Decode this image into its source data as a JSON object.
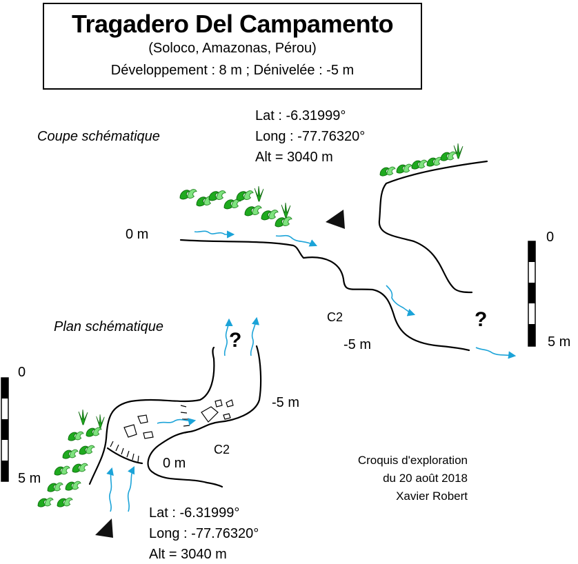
{
  "header": {
    "title": "Tragadero Del Campamento",
    "subtitle": "(Soloco, Amazonas, Pérou)",
    "stats": "Développement : 8 m ; Dénivelée : -5 m"
  },
  "section_view": {
    "heading": "Coupe schématique",
    "lat": "Lat : -6.31999°",
    "long": "Long : -77.76320°",
    "alt": "Alt = 3040 m",
    "level_top": "0 m",
    "level_bottom": "-5 m",
    "passage": "C2",
    "unknown": "?",
    "scale_top": "0",
    "scale_bottom": "5 m"
  },
  "plan_view": {
    "heading": "Plan schématique",
    "lat": "Lat : -6.31999°",
    "long": "Long : -77.76320°",
    "alt": "Alt = 3040 m",
    "level_entrance": "0 m",
    "level_bottom": "-5 m",
    "passage": "C2",
    "unknown": "?",
    "scale_top": "0",
    "scale_bottom": "5 m"
  },
  "credits": {
    "line1": "Croquis d'exploration",
    "line2": "du 20 août 2018",
    "line3": "Xavier Robert"
  },
  "colors": {
    "water_arrow": "#1ba3d8",
    "vegetation_dark": "#1faa1f",
    "vegetation_light": "#7ee37e",
    "line": "#000000"
  },
  "icons": {
    "entrance": "black-triangle-icon",
    "water_flow": "blue-arrow-icon",
    "vegetation": "plant-icon"
  }
}
